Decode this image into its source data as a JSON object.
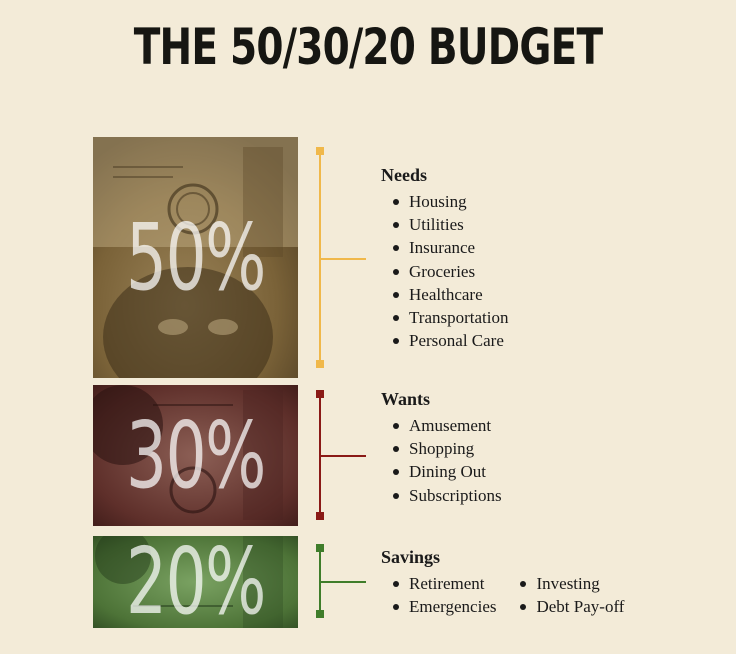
{
  "title": "THE 50/30/20 BUDGET",
  "colors": {
    "background": "#f3ebd8",
    "needs": "#f0b84a",
    "wants": "#8a1a16",
    "savings": "#3f7d2a"
  },
  "categories": [
    {
      "key": "needs",
      "label": "Needs",
      "percent": "50%",
      "items": [
        "Housing",
        "Utilities",
        "Insurance",
        "Groceries",
        "Healthcare",
        "Transportation",
        "Personal Care"
      ]
    },
    {
      "key": "wants",
      "label": "Wants",
      "percent": "30%",
      "items": [
        "Amusement",
        "Shopping",
        "Dining Out",
        "Subscriptions"
      ]
    },
    {
      "key": "savings",
      "label": "Savings",
      "percent": "20%",
      "items_col1": [
        "Retirement",
        "Emergencies"
      ],
      "items_col2": [
        "Investing",
        "Debt Pay-off"
      ]
    }
  ]
}
